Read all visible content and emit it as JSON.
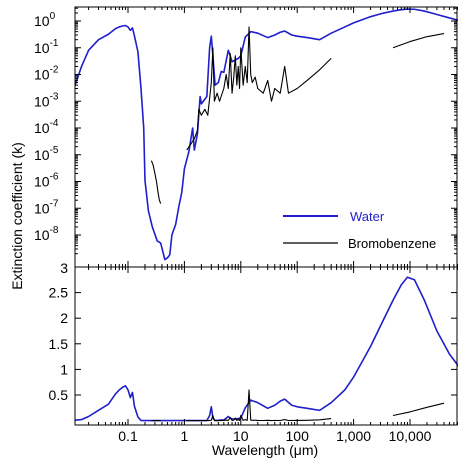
{
  "chart_data": {
    "type": "line",
    "xlabel": "Wavelength (μm)",
    "ylabel": "Extinction coefficient (k)",
    "x_scale": "log",
    "x_range": [
      0.01,
      100000
    ],
    "x_ticks": [
      {
        "value": 0.1,
        "label": "0.1"
      },
      {
        "value": 1,
        "label": "1"
      },
      {
        "value": 10,
        "label": "10"
      },
      {
        "value": 100,
        "label": "100"
      },
      {
        "value": 1000,
        "label": "1,000"
      },
      {
        "value": 10000,
        "label": "10,000"
      }
    ],
    "legend": {
      "placement": "lower-right of top panel",
      "entries": [
        {
          "name": "Water",
          "color": "#1f1fcc"
        },
        {
          "name": "Bromobenzene",
          "color": "#000000"
        }
      ]
    },
    "panels": [
      {
        "id": "top",
        "y_scale": "log",
        "y_range": [
          1e-09,
          1.0
        ],
        "y_tick_labels": [
          {
            "exp": "0",
            "value": 1.0
          },
          {
            "exp": "-1",
            "value": 0.1
          },
          {
            "exp": "-2",
            "value": 0.01
          },
          {
            "exp": "-3",
            "value": 0.001
          },
          {
            "exp": "-4",
            "value": 0.0001
          },
          {
            "exp": "-5",
            "value": 1e-05
          },
          {
            "exp": "-6",
            "value": 1e-06
          },
          {
            "exp": "-7",
            "value": 1e-07
          },
          {
            "exp": "-8",
            "value": 1e-08
          }
        ]
      },
      {
        "id": "bottom",
        "y_scale": "linear",
        "y_range": [
          0,
          3
        ],
        "y_tick_labels": [
          {
            "label": "3",
            "value": 3
          },
          {
            "label": "2.5",
            "value": 2.5
          },
          {
            "label": "2",
            "value": 2
          },
          {
            "label": "1.5",
            "value": 1.5
          },
          {
            "label": "1",
            "value": 1
          },
          {
            "label": "0.5",
            "value": 0.5
          }
        ]
      }
    ],
    "series": [
      {
        "name": "Water",
        "color": "#1f1fcc",
        "points": [
          [
            0.01,
            0.0017
          ],
          [
            0.015,
            0.02
          ],
          [
            0.02,
            0.08
          ],
          [
            0.03,
            0.2
          ],
          [
            0.045,
            0.32
          ],
          [
            0.06,
            0.52
          ],
          [
            0.07,
            0.6
          ],
          [
            0.08,
            0.65
          ],
          [
            0.09,
            0.68
          ],
          [
            0.1,
            0.6
          ],
          [
            0.11,
            0.45
          ],
          [
            0.12,
            0.55
          ],
          [
            0.13,
            0.28
          ],
          [
            0.15,
            0.07
          ],
          [
            0.17,
            0.003
          ],
          [
            0.19,
            0.0001
          ],
          [
            0.2,
            1.1e-06
          ],
          [
            0.23,
            8e-08
          ],
          [
            0.27,
            2e-08
          ],
          [
            0.33,
            6e-09
          ],
          [
            0.38,
            5e-09
          ],
          [
            0.45,
            1.2e-09
          ],
          [
            0.5,
            1.4e-09
          ],
          [
            0.55,
            1.8e-09
          ],
          [
            0.6,
            1e-08
          ],
          [
            0.7,
            2.5e-08
          ],
          [
            0.8,
            1.2e-07
          ],
          [
            0.9,
            4e-07
          ],
          [
            1.0,
            3e-06
          ],
          [
            1.2,
            1.3e-05
          ],
          [
            1.4,
            0.0001
          ],
          [
            1.5,
            1.5e-05
          ],
          [
            1.7,
            6e-05
          ],
          [
            1.9,
            0.0015
          ],
          [
            2.0,
            0.0008
          ],
          [
            2.5,
            0.0015
          ],
          [
            2.8,
            0.1
          ],
          [
            3.0,
            0.27
          ],
          [
            3.2,
            0.05
          ],
          [
            3.5,
            0.004
          ],
          [
            4.0,
            0.005
          ],
          [
            4.5,
            0.013
          ],
          [
            5.0,
            0.012
          ],
          [
            6.0,
            0.08
          ],
          [
            6.5,
            0.05
          ],
          [
            7.0,
            0.03
          ],
          [
            9.0,
            0.04
          ],
          [
            10.0,
            0.05
          ],
          [
            12.0,
            0.25
          ],
          [
            15.0,
            0.4
          ],
          [
            20.0,
            0.35
          ],
          [
            30.0,
            0.24
          ],
          [
            40.0,
            0.3
          ],
          [
            50.0,
            0.38
          ],
          [
            60.0,
            0.42
          ],
          [
            80.0,
            0.3
          ],
          [
            100.0,
            0.27
          ],
          [
            150.0,
            0.24
          ],
          [
            250.0,
            0.2
          ],
          [
            400.0,
            0.35
          ],
          [
            700.0,
            0.6
          ],
          [
            1000.0,
            0.85
          ],
          [
            2000.0,
            1.45
          ],
          [
            3000.0,
            1.85
          ],
          [
            5000.0,
            2.35
          ],
          [
            7000.0,
            2.65
          ],
          [
            9000.0,
            2.8
          ],
          [
            12000.0,
            2.75
          ],
          [
            18000.0,
            2.35
          ],
          [
            30000.0,
            1.75
          ],
          [
            50000.0,
            1.3
          ],
          [
            80000.0,
            1.0
          ],
          [
            100000.0,
            0.82
          ]
        ]
      },
      {
        "name": "Bromobenzene",
        "color": "#000000",
        "segments": [
          [
            [
              0.26,
              6e-06
            ],
            [
              0.28,
              4e-06
            ],
            [
              0.3,
              2e-06
            ],
            [
              0.32,
              1e-06
            ],
            [
              0.34,
              4e-07
            ],
            [
              0.36,
              2e-07
            ],
            [
              0.38,
              1.5e-07
            ]
          ],
          [
            [
              1.1,
              1.5e-05
            ],
            [
              1.3,
              2.5e-05
            ],
            [
              1.5,
              4e-05
            ],
            [
              1.7,
              8e-05
            ],
            [
              1.8,
              0.0005
            ],
            [
              2.0,
              0.0003
            ],
            [
              2.3,
              0.0005
            ],
            [
              2.6,
              0.0003
            ],
            [
              3.0,
              0.005
            ],
            [
              3.2,
              0.1
            ],
            [
              3.4,
              0.001
            ],
            [
              3.8,
              0.002
            ],
            [
              4.2,
              0.001
            ],
            [
              5.0,
              0.003
            ],
            [
              5.5,
              0.01
            ],
            [
              6.0,
              0.003
            ],
            [
              6.5,
              0.06
            ],
            [
              7.0,
              0.002
            ],
            [
              7.5,
              0.008
            ],
            [
              8.0,
              0.05
            ],
            [
              8.5,
              0.004
            ],
            [
              9.0,
              0.02
            ],
            [
              9.5,
              0.003
            ],
            [
              10.0,
              0.1
            ],
            [
              11.0,
              0.004
            ],
            [
              12.0,
              0.02
            ],
            [
              13.0,
              0.005
            ],
            [
              14.0,
              0.6
            ],
            [
              15.0,
              0.01
            ],
            [
              16.0,
              0.005
            ],
            [
              18.0,
              0.008
            ],
            [
              20.0,
              0.003
            ],
            [
              25.0,
              0.002
            ],
            [
              30.0,
              0.006
            ],
            [
              35.0,
              0.001
            ],
            [
              40.0,
              0.003
            ],
            [
              50.0,
              0.002
            ],
            [
              60.0,
              0.02
            ],
            [
              70.0,
              0.002
            ],
            [
              100.0,
              0.003
            ],
            [
              150.0,
              0.006
            ],
            [
              250.0,
              0.015
            ],
            [
              400.0,
              0.04
            ]
          ],
          [
            [
              5000.0,
              0.1
            ],
            [
              10000.0,
              0.17
            ],
            [
              20000.0,
              0.26
            ],
            [
              40000.0,
              0.34
            ]
          ]
        ]
      }
    ]
  }
}
